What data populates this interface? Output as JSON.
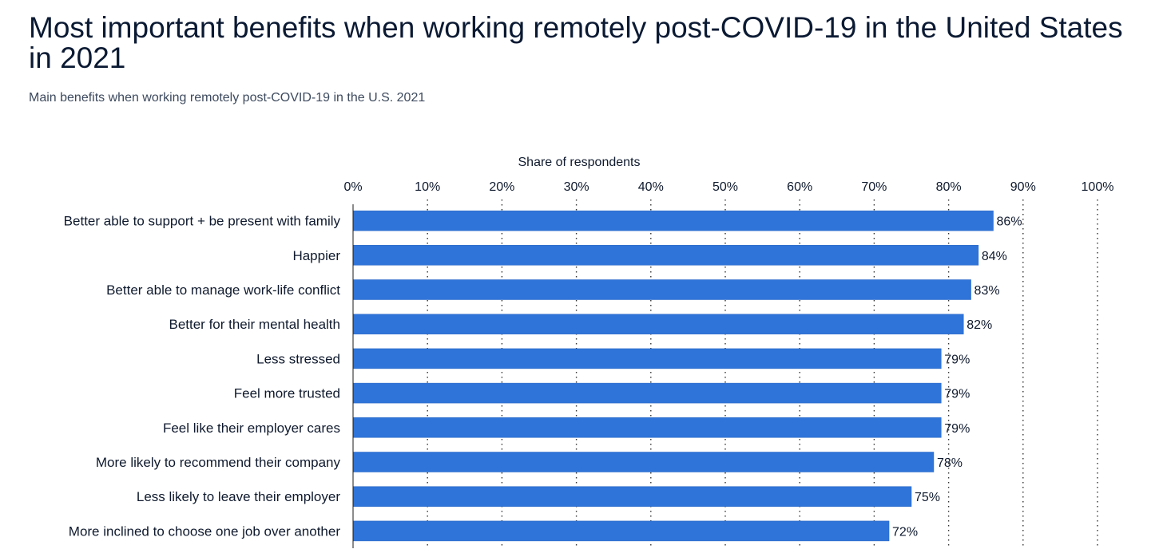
{
  "page": {
    "title": "Most important benefits when working remotely post-COVID-19 in the United States in 2021",
    "subtitle": "Main benefits when working remotely post-COVID-19 in the U.S. 2021"
  },
  "chart_data": {
    "type": "bar",
    "orientation": "horizontal",
    "xlabel": "Share of respondents",
    "xlim": [
      0,
      100
    ],
    "ticks": [
      "0%",
      "10%",
      "20%",
      "30%",
      "40%",
      "50%",
      "60%",
      "70%",
      "80%",
      "90%",
      "100%"
    ],
    "grid": true,
    "bar_color": "#2f74d8",
    "categories": [
      "Better able to support + be present with family",
      "Happier",
      "Better able to manage work-life conflict",
      "Better for their mental health",
      "Less stressed",
      "Feel more trusted",
      "Feel like their employer cares",
      "More likely to recommend their company",
      "Less likely to leave their employer",
      "More inclined to choose one job over another"
    ],
    "values": [
      86,
      84,
      83,
      82,
      79,
      79,
      79,
      78,
      75,
      72
    ],
    "labels": [
      "86%",
      "84%",
      "83%",
      "82%",
      "79%",
      "79%",
      "79%",
      "78%",
      "75%",
      "72%"
    ]
  }
}
